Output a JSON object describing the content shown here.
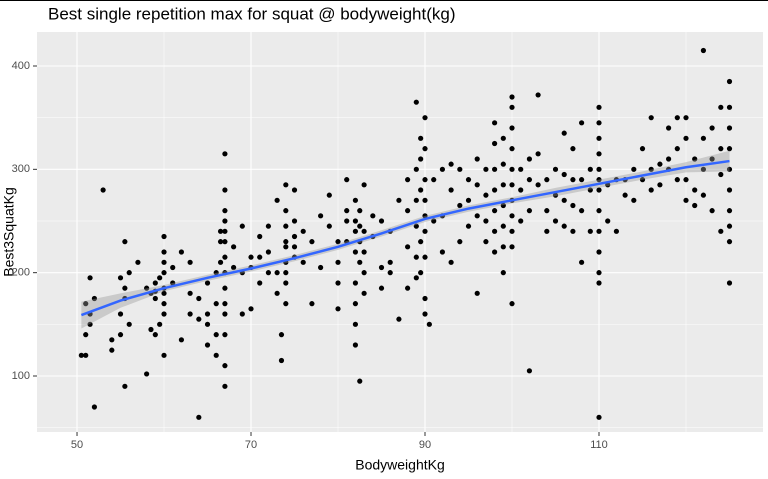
{
  "chart_data": {
    "type": "scatter",
    "title": "Best single repetition max for squat @ bodyweight(kg)",
    "x_label": "BodyweightKg",
    "y_label": "Best3SquatKg",
    "xlim": [
      45.4,
      128.85
    ],
    "ylim": [
      45.8,
      432.9
    ],
    "xticks": [
      50,
      70,
      90,
      110
    ],
    "yticks": [
      100,
      200,
      300,
      400
    ],
    "grid": true,
    "point_color": "#000000",
    "points": {
      "x": [
        50.5,
        51,
        51,
        51,
        51.5,
        51.5,
        51.5,
        52,
        52,
        53,
        54,
        54,
        55,
        55,
        55,
        55.5,
        55.5,
        55.5,
        55.5,
        56,
        56,
        57,
        58,
        58,
        58.5,
        58.5,
        59,
        59,
        59,
        59,
        59.5,
        59.5,
        60,
        60,
        60,
        60,
        60,
        60,
        60,
        60,
        60,
        61,
        61,
        62,
        62,
        63,
        63,
        63,
        64,
        64,
        64,
        65,
        65,
        65,
        65,
        66,
        66,
        66,
        66,
        66.5,
        66.5,
        66.5,
        67,
        67,
        67,
        67,
        67,
        67,
        67,
        67,
        67,
        67,
        67,
        67,
        67,
        67,
        68,
        68,
        69,
        69,
        69,
        70,
        70,
        70,
        71,
        71,
        71,
        72,
        72,
        72,
        73,
        73,
        73,
        73.5,
        73.5,
        74,
        74,
        74,
        74,
        74,
        74,
        74,
        74,
        74,
        75,
        75,
        75,
        75,
        75,
        76,
        76,
        77,
        77,
        78,
        78,
        79,
        79,
        80,
        80,
        80,
        80,
        81,
        81,
        81,
        81,
        82,
        82,
        82,
        82,
        82,
        82,
        82,
        82,
        82.5,
        82.5,
        82.5,
        82.5,
        82.5,
        83,
        83,
        83,
        83,
        83,
        84,
        84,
        85,
        85,
        85,
        86,
        86,
        86,
        87,
        87,
        88,
        88,
        88,
        88,
        89,
        89,
        89,
        89,
        89,
        89,
        89.5,
        89.5,
        89.5,
        89.5,
        89.5,
        90,
        90,
        90,
        90,
        90,
        90,
        90,
        90,
        90,
        90.5,
        91,
        91,
        92,
        92,
        92,
        93,
        93,
        93,
        94,
        94,
        94,
        95,
        95,
        95,
        96,
        96,
        96,
        96,
        97,
        97,
        97,
        97,
        98,
        98,
        98,
        98,
        98,
        98,
        98,
        99,
        99,
        99,
        99,
        99,
        99,
        99,
        100,
        100,
        100,
        100,
        100,
        100,
        100,
        100,
        100,
        100,
        100,
        101,
        101,
        101,
        102,
        102,
        102,
        102,
        103,
        103,
        103,
        104,
        104,
        104,
        105,
        105,
        105,
        106,
        106,
        106,
        106,
        107,
        107,
        107,
        107,
        108,
        108,
        108,
        108,
        109,
        109,
        109,
        110,
        110,
        110,
        110,
        110,
        110,
        110,
        110,
        110,
        110,
        110,
        110,
        110,
        111,
        111,
        112,
        112,
        113,
        113,
        114,
        114,
        115,
        115,
        116,
        116,
        116,
        117,
        117,
        118,
        118,
        118,
        119,
        119,
        119,
        120,
        120,
        120,
        120,
        121,
        121,
        121,
        122,
        122,
        122,
        122,
        123,
        123,
        123,
        124,
        124,
        124,
        124,
        125,
        125,
        125,
        125,
        125,
        125,
        125,
        125,
        125,
        125
      ],
      "y": [
        120,
        120,
        140,
        170,
        195,
        160,
        150,
        70,
        175,
        280,
        135,
        125,
        160,
        140,
        195,
        230,
        90,
        185,
        175,
        200,
        150,
        210,
        102,
        185,
        145,
        180,
        175,
        190,
        182,
        140,
        195,
        150,
        185,
        200,
        210,
        220,
        235,
        180,
        160,
        120,
        170,
        190,
        205,
        220,
        135,
        210,
        160,
        180,
        155,
        175,
        60,
        160,
        150,
        130,
        190,
        200,
        170,
        140,
        120,
        240,
        210,
        230,
        315,
        280,
        260,
        250,
        240,
        230,
        215,
        200,
        185,
        170,
        160,
        140,
        110,
        90,
        225,
        205,
        245,
        200,
        160,
        215,
        205,
        165,
        235,
        215,
        190,
        220,
        245,
        200,
        270,
        200,
        180,
        140,
        115,
        285,
        260,
        245,
        230,
        225,
        210,
        200,
        190,
        170,
        280,
        250,
        235,
        225,
        215,
        240,
        210,
        230,
        170,
        255,
        205,
        275,
        245,
        230,
        210,
        190,
        165,
        290,
        260,
        250,
        230,
        270,
        250,
        240,
        220,
        190,
        170,
        150,
        130,
        260,
        245,
        230,
        210,
        95,
        285,
        240,
        220,
        200,
        180,
        255,
        235,
        250,
        205,
        185,
        240,
        210,
        200,
        270,
        155,
        290,
        260,
        225,
        185,
        365,
        300,
        270,
        245,
        215,
        195,
        330,
        310,
        280,
        230,
        200,
        350,
        320,
        290,
        270,
        255,
        240,
        215,
        175,
        160,
        150,
        290,
        250,
        300,
        255,
        220,
        305,
        280,
        210,
        300,
        265,
        230,
        290,
        270,
        245,
        310,
        285,
        255,
        180,
        300,
        275,
        250,
        230,
        345,
        325,
        300,
        280,
        260,
        240,
        220,
        330,
        305,
        285,
        265,
        245,
        225,
        200,
        370,
        360,
        340,
        320,
        300,
        285,
        270,
        255,
        240,
        225,
        170,
        300,
        280,
        250,
        310,
        290,
        260,
        105,
        372,
        315,
        285,
        290,
        260,
        240,
        300,
        275,
        250,
        335,
        295,
        270,
        245,
        320,
        290,
        265,
        240,
        345,
        290,
        260,
        210,
        300,
        280,
        240,
        360,
        345,
        330,
        315,
        300,
        290,
        280,
        260,
        240,
        220,
        200,
        190,
        60,
        285,
        250,
        290,
        240,
        290,
        275,
        300,
        270,
        320,
        290,
        350,
        300,
        280,
        305,
        285,
        340,
        310,
        300,
        350,
        320,
        290,
        350,
        330,
        290,
        270,
        310,
        265,
        280,
        415,
        330,
        300,
        275,
        340,
        310,
        260,
        360,
        320,
        295,
        240,
        385,
        360,
        340,
        320,
        300,
        280,
        260,
        245,
        230,
        190
      ]
    },
    "smooth": {
      "color": "#3366ff",
      "band_color": "#999999",
      "x": [
        50.5,
        55,
        60,
        65,
        70,
        75,
        80,
        85,
        90,
        95,
        100,
        105,
        110,
        115,
        120,
        125
      ],
      "y": [
        159,
        173,
        185,
        195,
        204,
        214,
        225,
        238,
        252,
        262,
        270,
        278,
        286,
        294,
        302,
        308
      ],
      "upper": [
        172,
        180,
        188,
        198,
        207,
        217,
        228,
        241,
        255,
        265,
        273,
        282,
        290,
        298,
        307,
        318
      ],
      "lower": [
        146,
        166,
        182,
        192,
        201,
        211,
        222,
        235,
        249,
        259,
        267,
        274,
        282,
        290,
        297,
        298
      ]
    }
  }
}
